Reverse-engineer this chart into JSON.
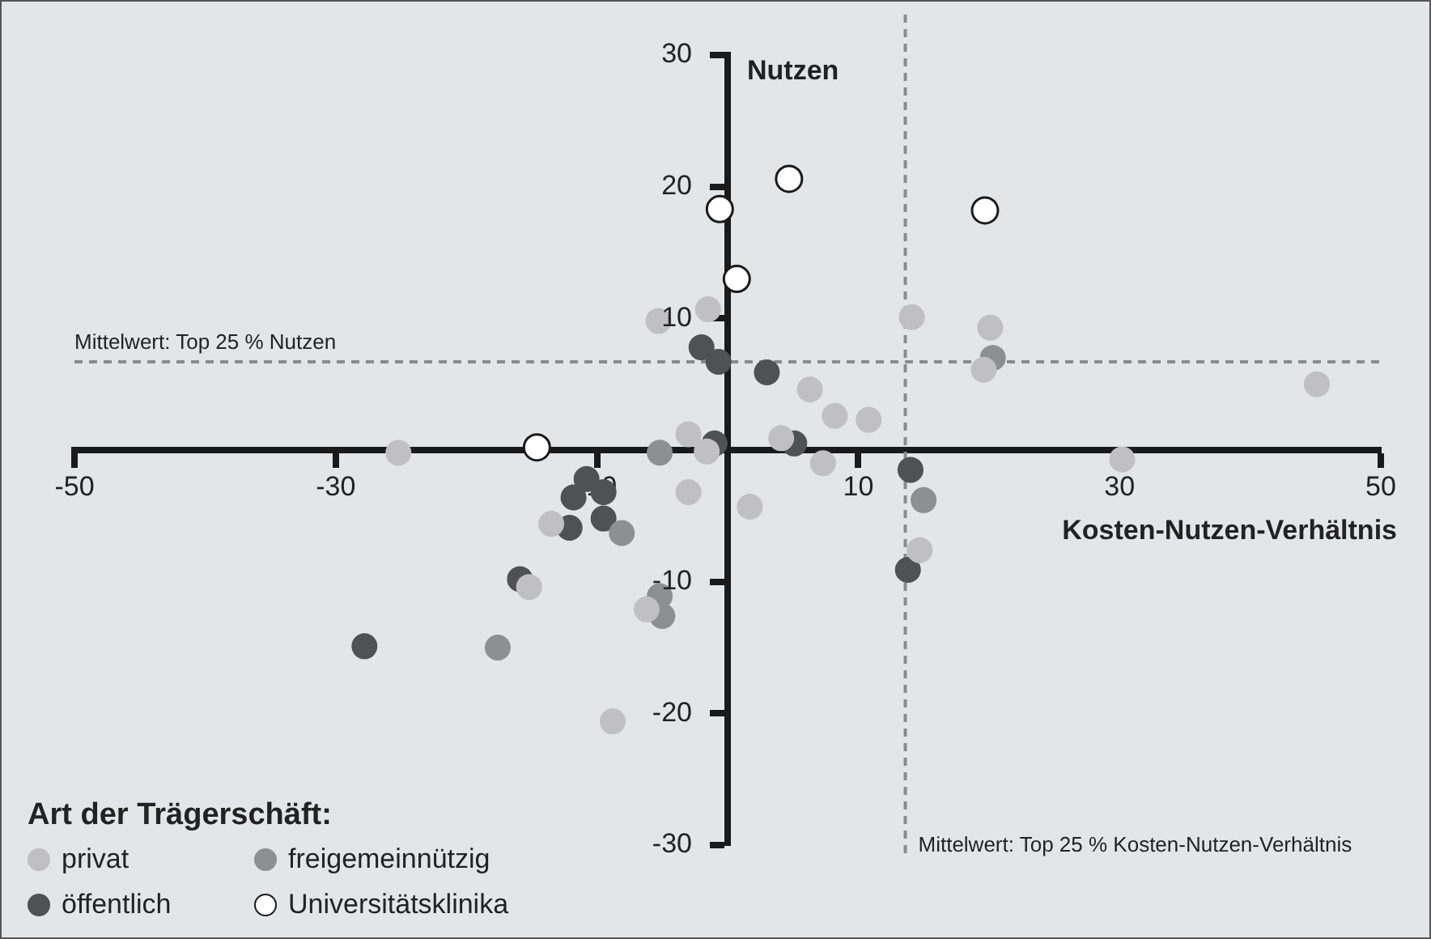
{
  "chart_data": {
    "type": "scatter",
    "xlabel": "Kosten-Nutzen-Verhältnis",
    "ylabel": "Nutzen",
    "legend_title": "Art der Trägerschäft:",
    "legend": "bottom left",
    "marker": "circle",
    "grid": false,
    "xlim": [
      -50,
      50
    ],
    "xticks": [
      -50,
      -30,
      -10,
      10,
      30,
      50
    ],
    "ylim": [
      -30,
      30
    ],
    "yticks": [
      -30,
      -20,
      -10,
      10,
      20,
      30
    ],
    "ref_lines": [
      {
        "axis": "y",
        "value": 6.7,
        "label": "Mittelwert: Top 25 % Nutzen",
        "color": "#8a8b8d",
        "line_style": "dashed"
      },
      {
        "axis": "x",
        "value": 13.6,
        "label": "Mittelwert: Top 25 % Kosten-Nutzen-Verhältnis",
        "color": "#8a8b8d",
        "line_style": "dashed"
      }
    ],
    "series": [
      {
        "name": "privat",
        "color": "#c0c0c2",
        "x": [
          -5.3,
          -1.5,
          6.3,
          8.2,
          10.8,
          -3.0,
          -1.6,
          4.1,
          7.3,
          14.1,
          20.1,
          19.6,
          45.1,
          30.2,
          14.7,
          -25.2,
          -3.0,
          1.7,
          -13.5,
          -15.2,
          -6.2,
          -8.8
        ],
        "values": [
          9.8,
          10.7,
          4.6,
          2.6,
          2.3,
          1.2,
          -0.1,
          0.9,
          -1.0,
          10.1,
          9.3,
          6.1,
          5.0,
          -0.7,
          -7.6,
          -0.2,
          -3.2,
          -4.3,
          -5.6,
          -10.4,
          -12.1,
          -20.6
        ]
      },
      {
        "name": "freigemeinnützig",
        "color": "#8e8f91",
        "x": [
          -5.2,
          20.3,
          15.0,
          -8.1,
          -5.2,
          -5.0,
          -17.6
        ],
        "values": [
          -0.2,
          7.0,
          -3.8,
          -6.3,
          -11.1,
          -12.6,
          -15.0
        ]
      },
      {
        "name": "öffentlich",
        "color": "#505153",
        "x": [
          -2.0,
          -0.7,
          3.0,
          -1.0,
          5.1,
          14.0,
          13.8,
          -10.8,
          -11.8,
          -9.5,
          -9.5,
          -12.1,
          -15.9,
          -27.8
        ],
        "values": [
          7.8,
          6.7,
          5.9,
          0.5,
          0.5,
          -1.5,
          -9.1,
          -2.2,
          -3.6,
          -3.2,
          -5.2,
          -5.9,
          -9.8,
          -14.9
        ]
      },
      {
        "name": "Universitätsklinika",
        "color": "#ffffff",
        "x": [
          4.7,
          -0.6,
          0.7,
          19.7,
          -14.6
        ],
        "values": [
          20.6,
          18.3,
          13.0,
          18.2,
          0.2
        ]
      }
    ]
  }
}
